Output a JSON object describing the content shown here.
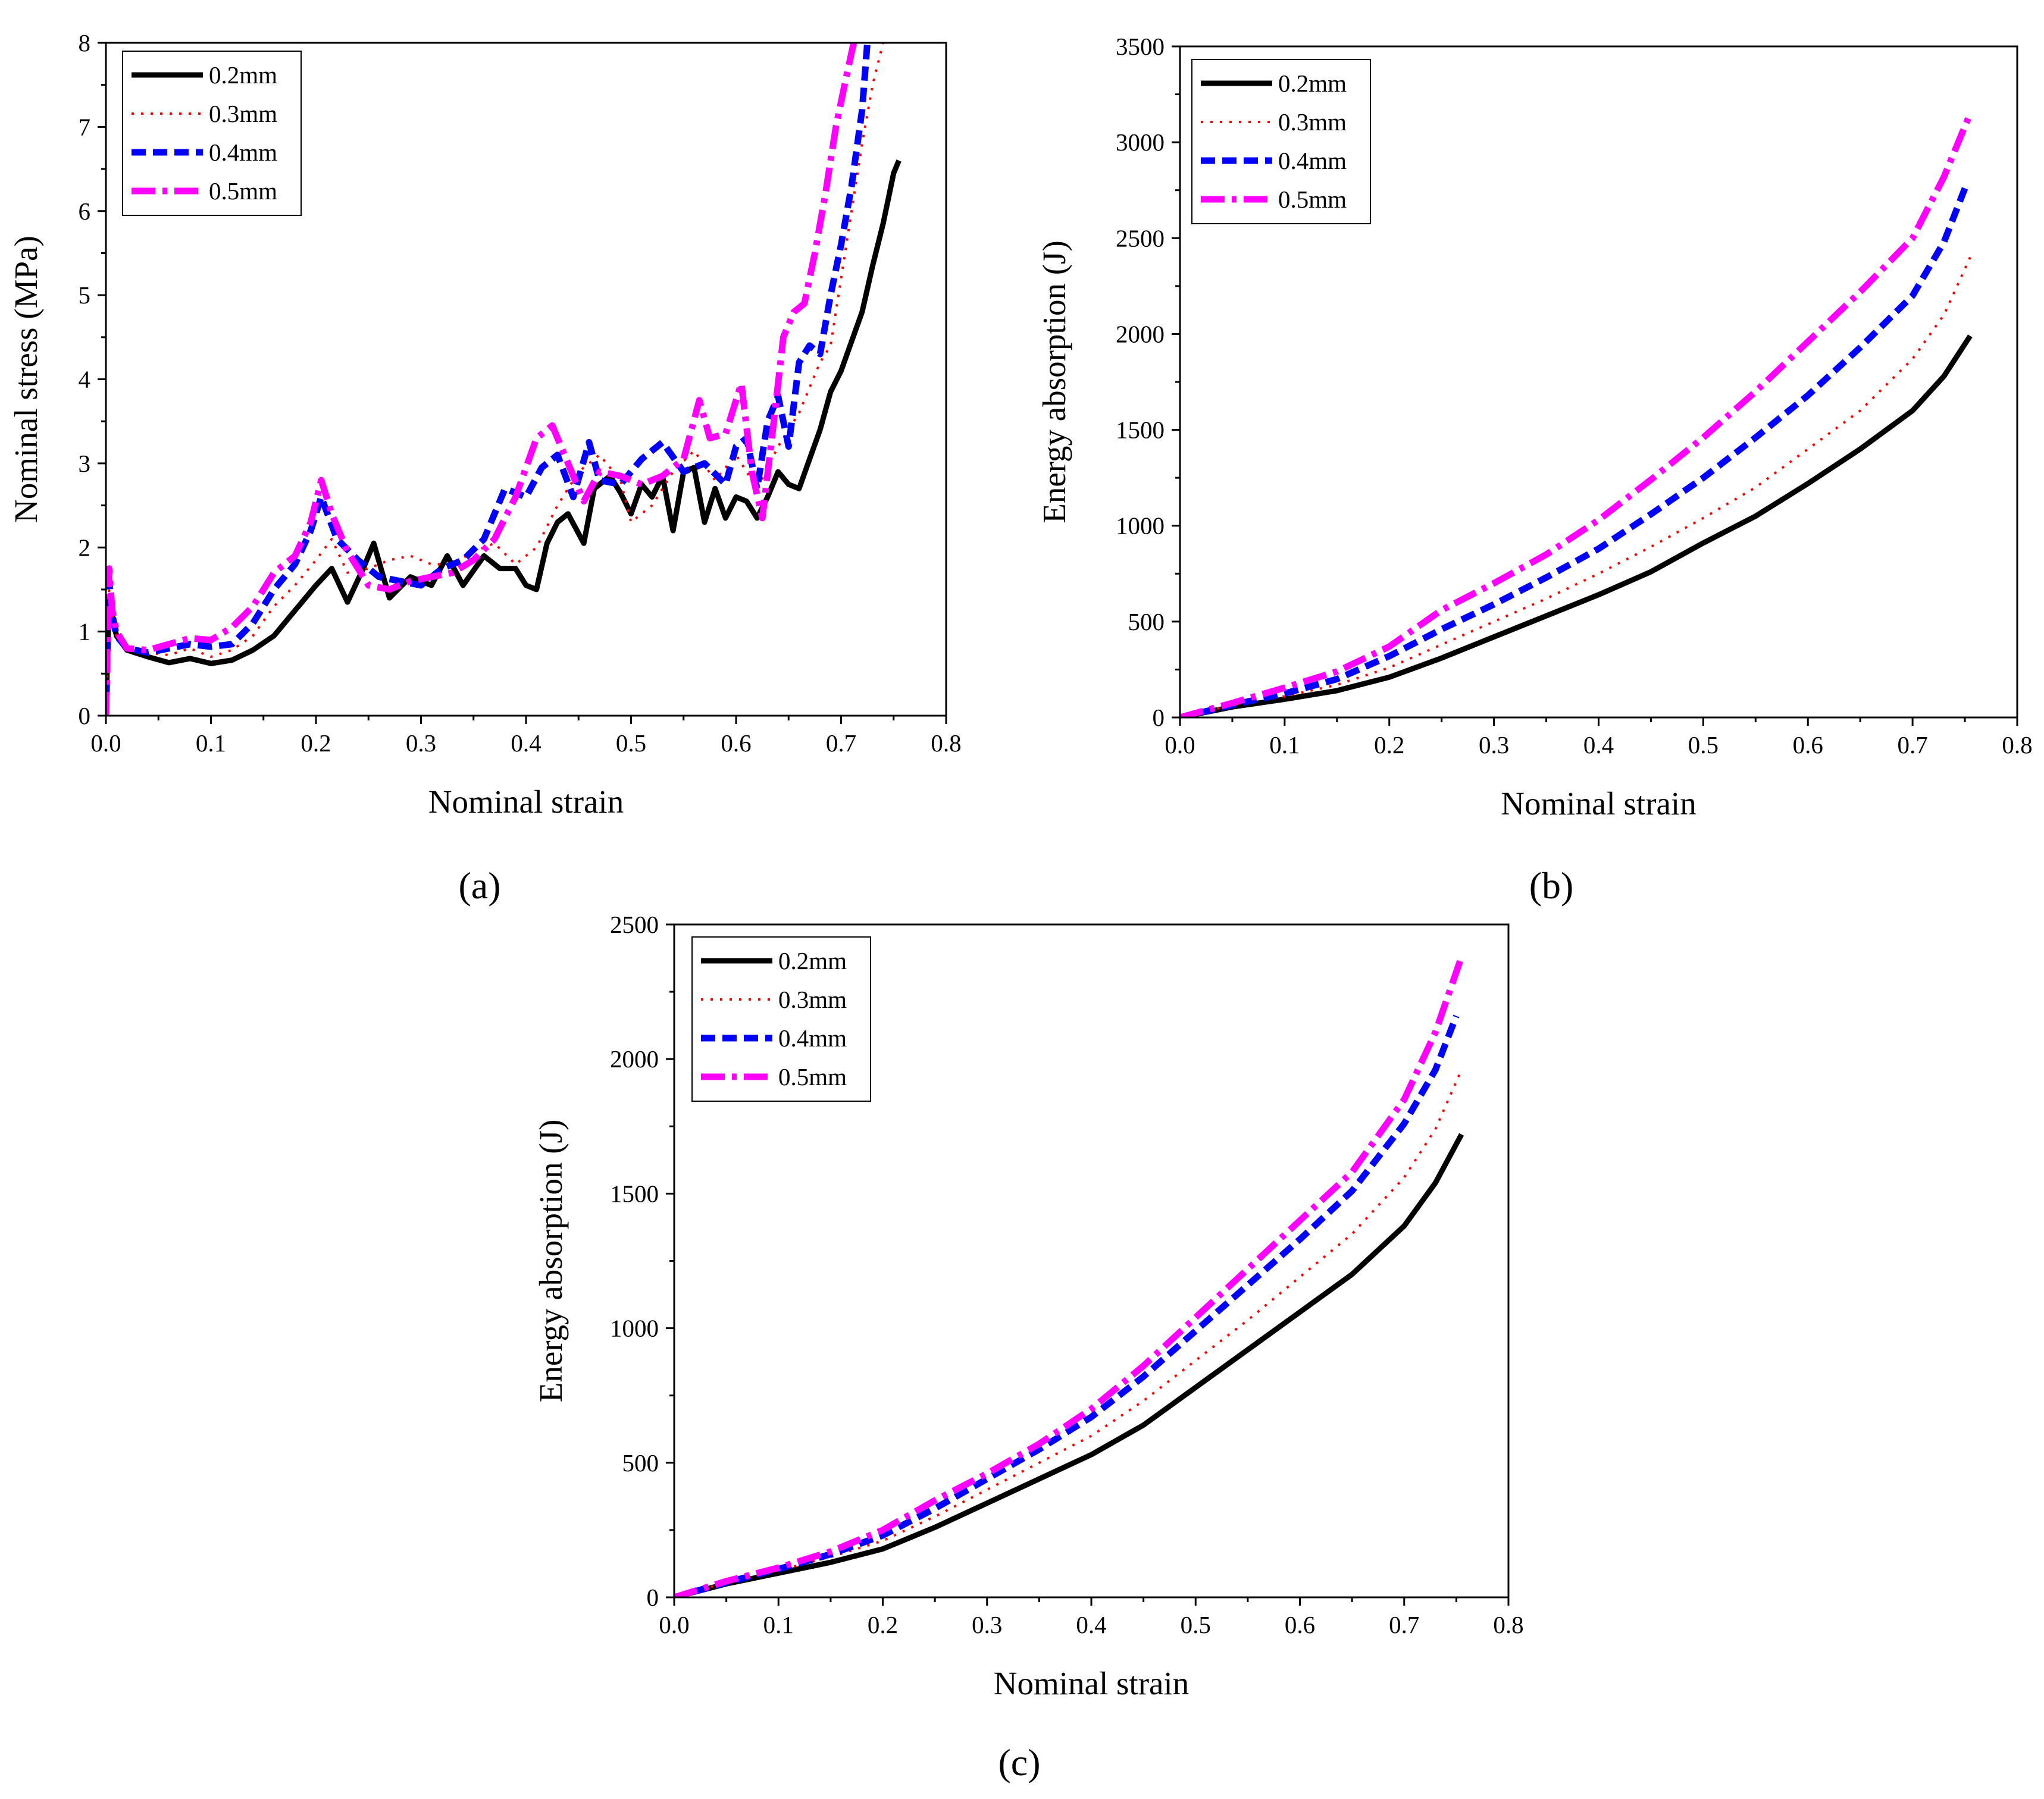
{
  "legend_labels": [
    "0.2mm",
    "0.3mm",
    "0.4mm",
    "0.5mm"
  ],
  "series_colors": [
    "#000000",
    "#ff0000",
    "#0000ff",
    "#ff00ff"
  ],
  "chart_data": [
    {
      "panel": "a",
      "caption": "(a)",
      "type": "line",
      "xlabel": "Nominal strain",
      "ylabel": "Nominal stress (MPa)",
      "xlim": [
        0,
        0.8
      ],
      "ylim": [
        0,
        8
      ],
      "xticks": [
        0.0,
        0.1,
        0.2,
        0.3,
        0.4,
        0.5,
        0.6,
        0.7,
        0.8
      ],
      "yticks": [
        0,
        1,
        2,
        3,
        4,
        5,
        6,
        7,
        8
      ],
      "legend_position": "top-left",
      "series": [
        {
          "name": "0.2mm",
          "x": [
            0,
            0.003,
            0.006,
            0.01,
            0.02,
            0.04,
            0.06,
            0.08,
            0.1,
            0.12,
            0.14,
            0.16,
            0.18,
            0.2,
            0.215,
            0.23,
            0.245,
            0.255,
            0.27,
            0.29,
            0.31,
            0.325,
            0.34,
            0.36,
            0.375,
            0.39,
            0.4,
            0.41,
            0.42,
            0.43,
            0.44,
            0.455,
            0.465,
            0.48,
            0.49,
            0.5,
            0.51,
            0.52,
            0.53,
            0.54,
            0.55,
            0.56,
            0.57,
            0.58,
            0.59,
            0.6,
            0.61,
            0.62,
            0.63,
            0.64,
            0.65,
            0.66,
            0.67,
            0.68,
            0.69,
            0.7,
            0.71,
            0.72,
            0.73,
            0.74,
            0.75,
            0.755
          ],
          "y": [
            0,
            1.4,
            1.2,
            0.95,
            0.78,
            0.7,
            0.63,
            0.68,
            0.62,
            0.66,
            0.78,
            0.95,
            1.25,
            1.55,
            1.75,
            1.35,
            1.75,
            2.05,
            1.4,
            1.65,
            1.55,
            1.9,
            1.55,
            1.9,
            1.75,
            1.75,
            1.55,
            1.5,
            2.05,
            2.3,
            2.4,
            2.05,
            2.7,
            2.85,
            2.65,
            2.4,
            2.75,
            2.6,
            2.85,
            2.2,
            2.9,
            2.95,
            2.3,
            2.7,
            2.35,
            2.6,
            2.55,
            2.35,
            2.6,
            2.9,
            2.75,
            2.7,
            3.05,
            3.4,
            3.85,
            4.1,
            4.45,
            4.8,
            5.35,
            5.85,
            6.45,
            6.6
          ]
        },
        {
          "name": "0.3mm",
          "x": [
            0,
            0.003,
            0.006,
            0.01,
            0.02,
            0.04,
            0.06,
            0.08,
            0.1,
            0.12,
            0.14,
            0.16,
            0.18,
            0.2,
            0.215,
            0.23,
            0.25,
            0.27,
            0.29,
            0.31,
            0.33,
            0.35,
            0.37,
            0.39,
            0.41,
            0.43,
            0.45,
            0.47,
            0.49,
            0.5,
            0.52,
            0.54,
            0.56,
            0.58,
            0.6,
            0.62,
            0.64,
            0.66,
            0.68,
            0.69,
            0.7,
            0.71,
            0.72,
            0.73,
            0.74
          ],
          "y": [
            0,
            1.5,
            1.2,
            0.95,
            0.8,
            0.75,
            0.72,
            0.8,
            0.7,
            0.78,
            0.95,
            1.3,
            1.55,
            1.85,
            2.1,
            1.7,
            1.75,
            1.85,
            1.9,
            1.8,
            1.8,
            1.95,
            2.05,
            1.8,
            2.0,
            2.5,
            2.9,
            3.1,
            2.8,
            2.3,
            2.5,
            2.9,
            3.15,
            2.8,
            3.1,
            2.7,
            3.2,
            3.6,
            4.2,
            4.4,
            5.2,
            6.0,
            6.8,
            7.5,
            8.0
          ]
        },
        {
          "name": "0.4mm",
          "x": [
            0,
            0.003,
            0.006,
            0.01,
            0.02,
            0.04,
            0.06,
            0.08,
            0.1,
            0.12,
            0.14,
            0.16,
            0.18,
            0.195,
            0.205,
            0.22,
            0.24,
            0.26,
            0.28,
            0.3,
            0.32,
            0.34,
            0.36,
            0.38,
            0.4,
            0.415,
            0.43,
            0.445,
            0.46,
            0.47,
            0.49,
            0.51,
            0.53,
            0.55,
            0.57,
            0.59,
            0.6,
            0.61,
            0.62,
            0.63,
            0.64,
            0.65,
            0.66,
            0.67,
            0.68,
            0.69,
            0.7,
            0.71,
            0.72,
            0.725
          ],
          "y": [
            0,
            1.6,
            1.2,
            0.95,
            0.8,
            0.75,
            0.8,
            0.85,
            0.82,
            0.85,
            1.1,
            1.5,
            1.8,
            2.2,
            2.6,
            2.1,
            1.85,
            1.65,
            1.6,
            1.55,
            1.75,
            1.85,
            2.1,
            2.7,
            2.6,
            2.95,
            3.1,
            2.6,
            3.25,
            2.8,
            2.75,
            3.05,
            3.25,
            2.9,
            3.0,
            2.75,
            3.2,
            3.3,
            2.7,
            3.5,
            3.8,
            3.2,
            4.2,
            4.4,
            4.3,
            5.0,
            5.6,
            6.3,
            7.2,
            8.0
          ]
        },
        {
          "name": "0.5mm",
          "x": [
            0,
            0.003,
            0.006,
            0.01,
            0.02,
            0.04,
            0.06,
            0.08,
            0.1,
            0.12,
            0.14,
            0.16,
            0.18,
            0.195,
            0.205,
            0.215,
            0.23,
            0.25,
            0.27,
            0.29,
            0.31,
            0.33,
            0.35,
            0.37,
            0.39,
            0.41,
            0.425,
            0.44,
            0.455,
            0.47,
            0.49,
            0.51,
            0.53,
            0.55,
            0.565,
            0.575,
            0.59,
            0.605,
            0.615,
            0.625,
            0.635,
            0.645,
            0.655,
            0.665,
            0.675,
            0.685,
            0.695,
            0.705,
            0.712
          ],
          "y": [
            0,
            1.75,
            1.25,
            1.0,
            0.8,
            0.78,
            0.85,
            0.92,
            0.9,
            1.05,
            1.3,
            1.7,
            1.9,
            2.3,
            2.8,
            2.4,
            1.95,
            1.55,
            1.5,
            1.6,
            1.65,
            1.7,
            1.85,
            2.1,
            2.6,
            3.3,
            3.45,
            3.0,
            2.55,
            2.9,
            2.85,
            2.75,
            2.85,
            3.05,
            3.75,
            3.3,
            3.35,
            3.95,
            2.9,
            2.35,
            3.4,
            4.5,
            4.8,
            4.9,
            5.5,
            6.2,
            7.0,
            7.6,
            8.0
          ]
        }
      ]
    },
    {
      "panel": "b",
      "caption": "(b)",
      "type": "line",
      "xlabel": "Nominal strain",
      "ylabel": "Energy absorption (J)",
      "xlim": [
        0,
        0.8
      ],
      "ylim": [
        0,
        3500
      ],
      "xticks": [
        0.0,
        0.1,
        0.2,
        0.3,
        0.4,
        0.5,
        0.6,
        0.7,
        0.8
      ],
      "yticks": [
        0,
        500,
        1000,
        1500,
        2000,
        2500,
        3000,
        3500
      ],
      "legend_position": "top-left",
      "series": [
        {
          "name": "0.2mm",
          "x": [
            0,
            0.05,
            0.1,
            0.15,
            0.2,
            0.25,
            0.3,
            0.35,
            0.4,
            0.45,
            0.5,
            0.55,
            0.6,
            0.65,
            0.7,
            0.73,
            0.755
          ],
          "y": [
            0,
            55,
            95,
            140,
            210,
            310,
            420,
            530,
            640,
            760,
            910,
            1050,
            1220,
            1400,
            1600,
            1780,
            1990
          ]
        },
        {
          "name": "0.3mm",
          "x": [
            0,
            0.05,
            0.1,
            0.15,
            0.2,
            0.25,
            0.3,
            0.35,
            0.4,
            0.45,
            0.5,
            0.55,
            0.6,
            0.65,
            0.7,
            0.73,
            0.755
          ],
          "y": [
            0,
            65,
            110,
            170,
            260,
            380,
            500,
            620,
            750,
            890,
            1040,
            1200,
            1400,
            1600,
            1870,
            2100,
            2400
          ]
        },
        {
          "name": "0.4mm",
          "x": [
            0,
            0.05,
            0.1,
            0.15,
            0.2,
            0.25,
            0.3,
            0.35,
            0.4,
            0.45,
            0.5,
            0.55,
            0.6,
            0.65,
            0.7,
            0.73,
            0.75
          ],
          "y": [
            0,
            65,
            125,
            200,
            320,
            460,
            590,
            730,
            880,
            1060,
            1250,
            1460,
            1680,
            1930,
            2200,
            2480,
            2760
          ]
        },
        {
          "name": "0.5mm",
          "x": [
            0,
            0.05,
            0.1,
            0.15,
            0.2,
            0.25,
            0.3,
            0.35,
            0.4,
            0.45,
            0.5,
            0.55,
            0.6,
            0.65,
            0.7,
            0.73,
            0.755
          ],
          "y": [
            0,
            75,
            155,
            240,
            370,
            560,
            700,
            850,
            1030,
            1240,
            1460,
            1700,
            1960,
            2220,
            2500,
            2820,
            3150
          ]
        }
      ]
    },
    {
      "panel": "c",
      "caption": "(c)",
      "type": "line",
      "xlabel": "Nominal strain",
      "ylabel": "Energy absorption (J)",
      "xlim": [
        0,
        0.8
      ],
      "ylim": [
        0,
        2500
      ],
      "xticks": [
        0.0,
        0.1,
        0.2,
        0.3,
        0.4,
        0.5,
        0.6,
        0.7,
        0.8
      ],
      "yticks": [
        0,
        500,
        1000,
        1500,
        2000,
        2500
      ],
      "legend_position": "top-left",
      "series": [
        {
          "name": "0.2mm",
          "x": [
            0,
            0.05,
            0.1,
            0.15,
            0.2,
            0.25,
            0.3,
            0.35,
            0.4,
            0.45,
            0.5,
            0.55,
            0.6,
            0.65,
            0.7,
            0.73,
            0.755
          ],
          "y": [
            0,
            50,
            90,
            130,
            180,
            260,
            350,
            440,
            530,
            640,
            780,
            920,
            1060,
            1200,
            1380,
            1540,
            1720
          ]
        },
        {
          "name": "0.3mm",
          "x": [
            0,
            0.05,
            0.1,
            0.15,
            0.2,
            0.25,
            0.3,
            0.35,
            0.4,
            0.45,
            0.5,
            0.55,
            0.6,
            0.65,
            0.7,
            0.73,
            0.755
          ],
          "y": [
            0,
            55,
            100,
            150,
            210,
            300,
            400,
            500,
            600,
            730,
            880,
            1030,
            1190,
            1350,
            1560,
            1740,
            1960
          ]
        },
        {
          "name": "0.4mm",
          "x": [
            0,
            0.05,
            0.1,
            0.15,
            0.2,
            0.25,
            0.3,
            0.35,
            0.4,
            0.45,
            0.5,
            0.55,
            0.6,
            0.65,
            0.7,
            0.73,
            0.75
          ],
          "y": [
            0,
            55,
            105,
            160,
            230,
            330,
            440,
            550,
            670,
            820,
            990,
            1160,
            1330,
            1510,
            1760,
            1960,
            2160
          ]
        },
        {
          "name": "0.5mm",
          "x": [
            0,
            0.05,
            0.1,
            0.15,
            0.2,
            0.25,
            0.3,
            0.35,
            0.4,
            0.45,
            0.5,
            0.55,
            0.6,
            0.65,
            0.7,
            0.73,
            0.755
          ],
          "y": [
            0,
            60,
            110,
            170,
            250,
            360,
            460,
            570,
            700,
            860,
            1040,
            1220,
            1400,
            1580,
            1850,
            2100,
            2380
          ]
        }
      ]
    }
  ]
}
